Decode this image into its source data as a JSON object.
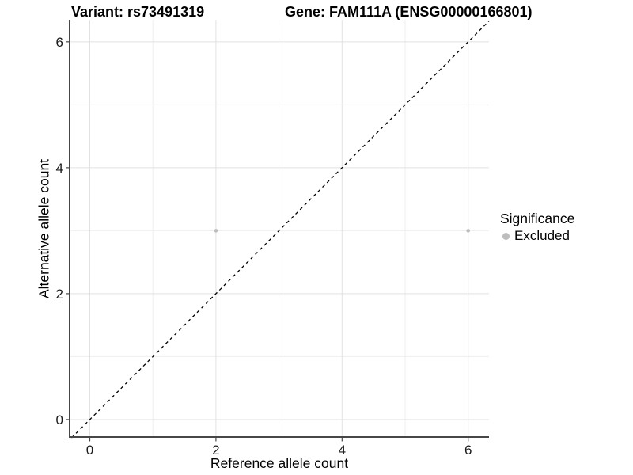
{
  "chart_data": {
    "type": "scatter",
    "title_left": "Variant: rs73491319",
    "title_right": "Gene: FAM111A (ENSG00000166801)",
    "xlabel": "Reference allele count",
    "ylabel": "Alternative allele count",
    "xlim": [
      -0.32,
      6.33
    ],
    "ylim": [
      -0.29,
      6.35
    ],
    "x_breaks": [
      0,
      2,
      4,
      6
    ],
    "y_breaks": [
      0,
      2,
      4,
      6
    ],
    "x_minor_breaks": [
      1,
      3,
      5
    ],
    "y_minor_breaks": [
      1,
      3,
      5
    ],
    "grid": true,
    "series": [
      {
        "name": "Excluded",
        "color": "#bdbdbd",
        "points": [
          {
            "x": 2,
            "y": 3
          },
          {
            "x": 6,
            "y": 3
          }
        ]
      }
    ],
    "reference_line": {
      "type": "identity",
      "style": "dashed",
      "color": "#000000"
    },
    "legend": {
      "title": "Significance",
      "position": "right",
      "items": [
        {
          "label": "Excluded",
          "color": "#bdbdbd"
        }
      ]
    }
  },
  "colors": {
    "background": "#ffffff",
    "text": "#000000",
    "tick_label": "#1a1a1a",
    "axis_line": "#474747",
    "grid_major": "#e2e2e2",
    "grid_minor": "#efefef",
    "point": "#bdbdbd",
    "reference_line": "#000000"
  }
}
